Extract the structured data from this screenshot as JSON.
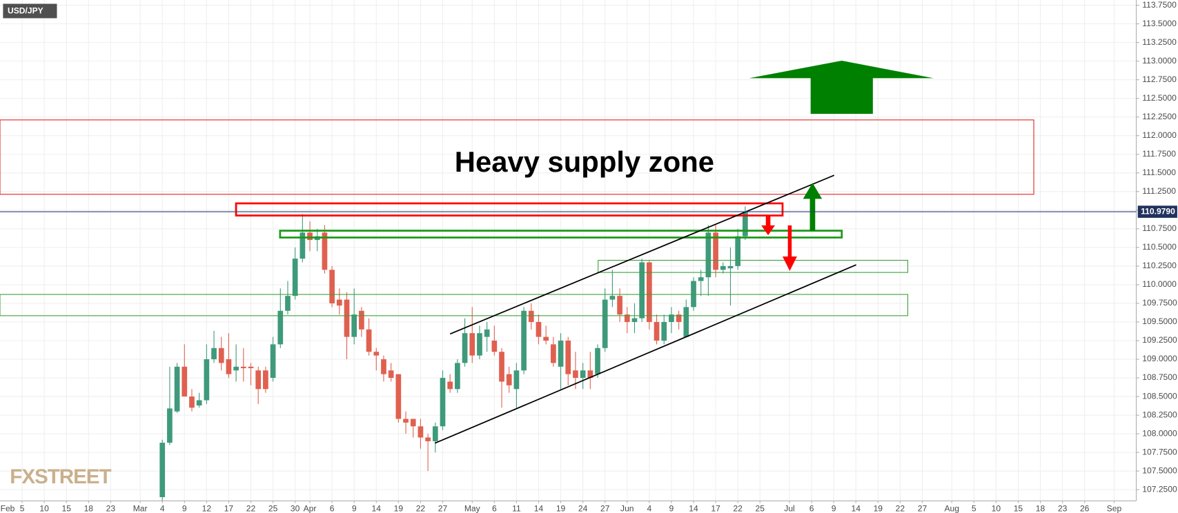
{
  "chart_data": {
    "type": "candlestick",
    "title": "USD/JPY",
    "annotation": "Heavy supply zone",
    "watermark": "FXSTREET",
    "last_price": {
      "value": 110.979,
      "label": "110.9790"
    },
    "up_color": "#3f9a7c",
    "down_color": "#e0604f",
    "grid": true,
    "x": [
      23,
      24,
      25,
      26,
      27,
      28,
      29,
      30,
      31,
      32,
      33,
      34,
      35,
      36,
      37,
      38,
      39,
      40,
      41,
      42,
      43,
      44,
      45,
      46,
      47,
      48,
      49,
      50,
      51,
      52,
      53,
      54,
      55,
      56,
      57,
      58,
      59,
      60,
      61,
      62,
      63,
      64,
      65,
      66,
      67,
      68,
      69,
      70,
      71,
      72,
      73,
      74,
      75,
      76,
      77,
      78,
      79,
      80,
      81,
      82,
      83,
      84,
      85,
      86,
      87,
      88,
      89,
      90,
      91,
      92,
      93,
      94,
      95,
      96,
      97,
      98,
      99,
      100,
      101,
      102
    ],
    "open": [
      107.15,
      107.88,
      108.3,
      108.9,
      108.5,
      108.38,
      108.45,
      109.0,
      109.15,
      109.0,
      108.85,
      108.9,
      108.9,
      108.85,
      108.85,
      108.75,
      109.2,
      109.65,
      109.85,
      110.35,
      110.7,
      110.6,
      110.7,
      110.2,
      109.8,
      109.8,
      109.3,
      109.65,
      109.4,
      109.1,
      109.0,
      108.85,
      108.8,
      108.2,
      108.2,
      108.1,
      107.95,
      107.9,
      108.1,
      108.7,
      108.6,
      108.95,
      109.35,
      109.05,
      109.3,
      109.25,
      109.1,
      108.8,
      108.6,
      108.85,
      109.65,
      109.5,
      109.3,
      109.2,
      108.9,
      109.25,
      108.85,
      108.75,
      108.85,
      108.8,
      109.15,
      109.8,
      109.85,
      109.6,
      109.5,
      109.55,
      110.3,
      109.5,
      109.25,
      109.5,
      109.6,
      109.3,
      109.7,
      110.05,
      110.1,
      110.7,
      110.2,
      110.22,
      110.25,
      110.65
    ],
    "high": [
      107.92,
      108.9,
      108.95,
      109.2,
      108.6,
      108.55,
      109.2,
      109.38,
      109.3,
      109.35,
      109.2,
      109.15,
      108.95,
      108.9,
      108.9,
      109.3,
      109.95,
      110.05,
      110.5,
      110.95,
      110.85,
      110.75,
      110.8,
      110.25,
      109.95,
      109.9,
      109.95,
      109.7,
      109.55,
      109.15,
      109.05,
      108.95,
      108.8,
      108.3,
      108.2,
      108.2,
      108.0,
      108.15,
      108.85,
      108.8,
      109.0,
      109.55,
      109.7,
      109.45,
      109.5,
      109.45,
      109.15,
      108.9,
      108.95,
      109.7,
      109.75,
      109.6,
      109.45,
      109.3,
      109.35,
      109.3,
      109.1,
      108.95,
      109.1,
      109.2,
      109.95,
      110.2,
      109.95,
      109.7,
      109.75,
      110.35,
      110.32,
      109.6,
      109.6,
      109.7,
      109.65,
      109.8,
      110.1,
      110.2,
      110.8,
      110.8,
      110.3,
      110.5,
      110.75,
      111.05
    ],
    "low": [
      107.1,
      107.85,
      108.28,
      108.5,
      108.3,
      108.35,
      108.4,
      108.95,
      108.85,
      108.75,
      108.7,
      108.7,
      108.65,
      108.4,
      108.55,
      108.7,
      109.15,
      109.6,
      109.8,
      110.3,
      110.45,
      110.45,
      110.15,
      109.7,
      109.6,
      109.0,
      109.2,
      109.3,
      109.05,
      108.85,
      108.7,
      108.7,
      108.15,
      108.0,
      107.95,
      107.8,
      107.5,
      107.75,
      108.05,
      108.55,
      108.55,
      108.9,
      108.95,
      109.0,
      109.1,
      109.05,
      108.35,
      108.55,
      108.35,
      108.8,
      109.4,
      109.2,
      109.2,
      108.9,
      108.6,
      108.65,
      108.6,
      108.6,
      108.6,
      108.75,
      109.1,
      109.7,
      109.5,
      109.35,
      109.35,
      109.5,
      109.4,
      109.2,
      109.2,
      109.35,
      109.4,
      109.3,
      109.65,
      109.85,
      109.85,
      110.1,
      110.15,
      109.72,
      110.2,
      110.6
    ],
    "close": [
      107.88,
      108.34,
      108.9,
      108.5,
      108.35,
      108.45,
      109.0,
      109.15,
      108.95,
      108.8,
      108.9,
      108.88,
      108.88,
      108.6,
      108.6,
      109.2,
      109.65,
      109.85,
      110.35,
      110.7,
      110.6,
      110.65,
      110.2,
      109.75,
      109.72,
      109.3,
      109.6,
      109.4,
      109.1,
      109.05,
      108.8,
      108.75,
      108.2,
      108.15,
      108.1,
      107.95,
      107.9,
      108.1,
      108.75,
      108.6,
      108.95,
      109.35,
      109.05,
      109.35,
      109.4,
      109.1,
      108.7,
      108.65,
      108.85,
      109.65,
      109.5,
      109.3,
      109.25,
      108.95,
      109.25,
      108.8,
      108.75,
      108.85,
      108.75,
      109.15,
      109.8,
      109.85,
      109.6,
      109.5,
      109.55,
      110.3,
      109.5,
      109.25,
      109.5,
      109.6,
      109.5,
      109.7,
      110.05,
      110.1,
      110.7,
      110.2,
      110.25,
      110.25,
      110.65,
      110.98
    ],
    "xlim": [
      1,
      155
    ],
    "ylim": [
      107.1,
      113.82
    ],
    "xticks": [
      {
        "value": 0,
        "label": "Feb"
      },
      {
        "value": 4,
        "label": "5"
      },
      {
        "value": 7,
        "label": "10"
      },
      {
        "value": 10,
        "label": "15"
      },
      {
        "value": 13,
        "label": "18"
      },
      {
        "value": 16,
        "label": "23"
      },
      {
        "value": 20,
        "label": "Mar"
      },
      {
        "value": 23,
        "label": "4"
      },
      {
        "value": 26,
        "label": "9"
      },
      {
        "value": 29,
        "label": "12"
      },
      {
        "value": 32,
        "label": "17"
      },
      {
        "value": 35,
        "label": "22"
      },
      {
        "value": 38,
        "label": "25"
      },
      {
        "value": 41,
        "label": "30"
      },
      {
        "value": 43,
        "label": "Apr"
      },
      {
        "value": 46,
        "label": "6"
      },
      {
        "value": 49,
        "label": "9"
      },
      {
        "value": 52,
        "label": "14"
      },
      {
        "value": 55,
        "label": "19"
      },
      {
        "value": 58,
        "label": "22"
      },
      {
        "value": 61,
        "label": "27"
      },
      {
        "value": 65,
        "label": "May"
      },
      {
        "value": 68,
        "label": "6"
      },
      {
        "value": 71,
        "label": "11"
      },
      {
        "value": 74,
        "label": "14"
      },
      {
        "value": 77,
        "label": "19"
      },
      {
        "value": 80,
        "label": "24"
      },
      {
        "value": 83,
        "label": "27"
      },
      {
        "value": 86,
        "label": "Jun"
      },
      {
        "value": 89,
        "label": "4"
      },
      {
        "value": 92,
        "label": "9"
      },
      {
        "value": 95,
        "label": "14"
      },
      {
        "value": 98,
        "label": "17"
      },
      {
        "value": 101,
        "label": "22"
      },
      {
        "value": 104,
        "label": "25"
      },
      {
        "value": 108,
        "label": "Jul"
      },
      {
        "value": 111,
        "label": "6"
      },
      {
        "value": 114,
        "label": "9"
      },
      {
        "value": 117,
        "label": "14"
      },
      {
        "value": 120,
        "label": "19"
      },
      {
        "value": 123,
        "label": "22"
      },
      {
        "value": 126,
        "label": "27"
      },
      {
        "value": 130,
        "label": "Aug"
      },
      {
        "value": 133,
        "label": "5"
      },
      {
        "value": 136,
        "label": "10"
      },
      {
        "value": 139,
        "label": "15"
      },
      {
        "value": 142,
        "label": "18"
      },
      {
        "value": 145,
        "label": "23"
      },
      {
        "value": 148,
        "label": "26"
      },
      {
        "value": 152,
        "label": "Sep"
      }
    ],
    "yticks": [
      {
        "value": 107.25,
        "label": "107.2500"
      },
      {
        "value": 107.5,
        "label": "107.5000"
      },
      {
        "value": 107.75,
        "label": "107.7500"
      },
      {
        "value": 108,
        "label": "108.0000"
      },
      {
        "value": 108.25,
        "label": "108.2500"
      },
      {
        "value": 108.5,
        "label": "108.5000"
      },
      {
        "value": 108.75,
        "label": "108.7500"
      },
      {
        "value": 109,
        "label": "109.0000"
      },
      {
        "value": 109.25,
        "label": "109.2500"
      },
      {
        "value": 109.5,
        "label": "109.5000"
      },
      {
        "value": 109.75,
        "label": "109.7500"
      },
      {
        "value": 110,
        "label": "110.0000"
      },
      {
        "value": 110.25,
        "label": "110.2500"
      },
      {
        "value": 110.5,
        "label": "110.5000"
      },
      {
        "value": 110.75,
        "label": "110.7500"
      },
      {
        "value": 111,
        "label": "111.0000"
      },
      {
        "value": 111.25,
        "label": "111.2500"
      },
      {
        "value": 111.5,
        "label": "111.5000"
      },
      {
        "value": 111.75,
        "label": "111.7500"
      },
      {
        "value": 112,
        "label": "112.0000"
      },
      {
        "value": 112.25,
        "label": "112.2500"
      },
      {
        "value": 112.5,
        "label": "112.5000"
      },
      {
        "value": 112.75,
        "label": "112.7500"
      },
      {
        "value": 113,
        "label": "113.0000"
      },
      {
        "value": 113.25,
        "label": "113.2500"
      },
      {
        "value": 113.5,
        "label": "113.5000"
      },
      {
        "value": 113.75,
        "label": "113.7500"
      }
    ]
  }
}
